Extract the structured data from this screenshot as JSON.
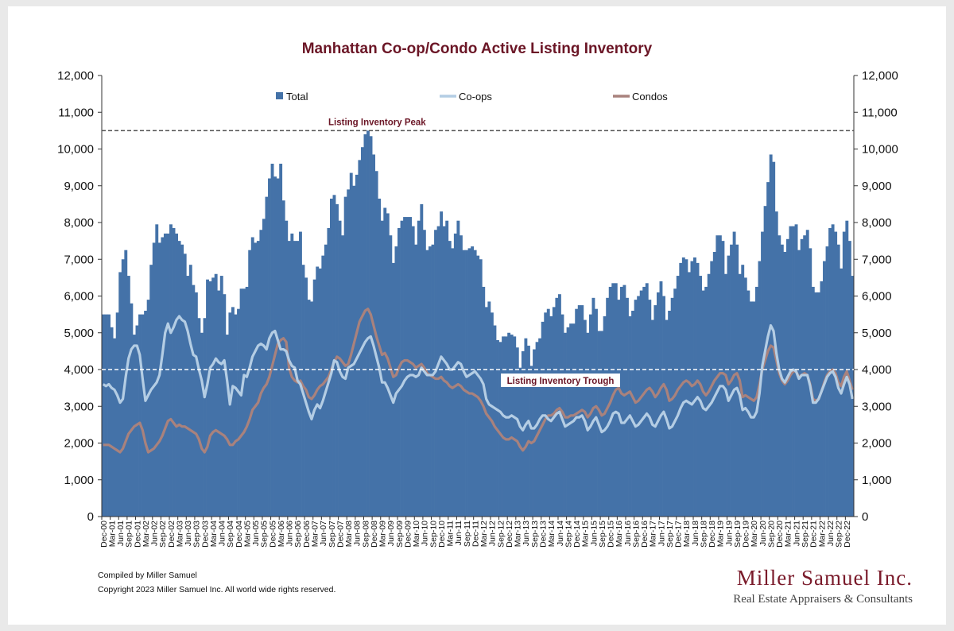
{
  "footer": {
    "compiled": "Compiled by Miller Samuel",
    "copyright": "Copyright 2023 Miller Samuel Inc.  All world wide rights reserved."
  },
  "logo": {
    "name": "Miller Samuel Inc.",
    "tagline": "Real Estate Appraisers & Consultants"
  },
  "chart_data": {
    "type": "bar",
    "title": "Manhattan Co-op/Condo Active Listing Inventory",
    "ylim": [
      0,
      12000
    ],
    "yticks": [
      0,
      1000,
      2000,
      3000,
      4000,
      5000,
      6000,
      7000,
      8000,
      9000,
      10000,
      11000,
      12000
    ],
    "dual_axis": true,
    "grid": false,
    "legend": {
      "position": "top",
      "entries": [
        "Total",
        "Co-ops",
        "Condos"
      ]
    },
    "x_tick_labels": [
      "Dec-00",
      "Mar-01",
      "Jun-01",
      "Sep-01",
      "Dec-01",
      "Mar-02",
      "Jun-02",
      "Sep-02",
      "Dec-02",
      "Mar-03",
      "Jun-03",
      "Sep-03",
      "Dec-03",
      "Mar-04",
      "Jun-04",
      "Sep-04",
      "Dec-04",
      "Mar-05",
      "Jun-05",
      "Sep-05",
      "Dec-05",
      "Mar-06",
      "Jun-06",
      "Sep-06",
      "Dec-06",
      "Mar-07",
      "Jun-07",
      "Sep-07",
      "Dec-07",
      "Mar-08",
      "Jun-08",
      "Sep-08",
      "Dec-08",
      "Mar-09",
      "Jun-09",
      "Sep-09",
      "Dec-09",
      "Mar-10",
      "Jun-10",
      "Sep-10",
      "Dec-10",
      "Mar-11",
      "Jun-11",
      "Sep-11",
      "Dec-11",
      "Mar-12",
      "Jun-12",
      "Sep-12",
      "Dec-12",
      "Mar-13",
      "Jun-13",
      "Sep-13",
      "Dec-13",
      "Mar-14",
      "Jun-14",
      "Sep-14",
      "Dec-14",
      "Mar-15",
      "Jun-15",
      "Sep-15",
      "Dec-15",
      "Mar-16",
      "Jun-16",
      "Sep-16",
      "Dec-16",
      "Mar-17",
      "Jun-17",
      "Sep-17",
      "Dec-17",
      "Mar-18",
      "Jun-18",
      "Sep-18",
      "Dec-18",
      "Mar-19",
      "Jun-19",
      "Sep-19",
      "Dec-19",
      "Mar-20",
      "Jun-20",
      "Sep-20",
      "Dec-20",
      "Mar-21",
      "Jun-21",
      "Sep-21",
      "Dec-21",
      "Mar-22",
      "Jun-22",
      "Sep-22",
      "Dec-22"
    ],
    "series": [
      {
        "name": "Total",
        "type": "bar",
        "color": "#4472a8",
        "values": [
          5500,
          5500,
          5500,
          5150,
          4850,
          5550,
          6650,
          7000,
          7250,
          6550,
          5800,
          4950,
          5200,
          5500,
          5500,
          5600,
          5900,
          6850,
          7450,
          7950,
          7450,
          7600,
          7700,
          7700,
          7950,
          7850,
          7700,
          7500,
          7400,
          7150,
          6550,
          6850,
          6300,
          6100,
          5400,
          5000,
          5400,
          6450,
          6400,
          6500,
          6600,
          6150,
          6550,
          6050,
          4950,
          5550,
          5700,
          5500,
          5650,
          6200,
          6200,
          6250,
          7250,
          7600,
          7450,
          7500,
          7800,
          8100,
          8700,
          9200,
          9600,
          9250,
          9200,
          9600,
          8600,
          8050,
          7500,
          7700,
          7500,
          7500,
          7750,
          6850,
          6500,
          5900,
          5850,
          6450,
          6800,
          6750,
          7100,
          7400,
          7850,
          8650,
          8750,
          8500,
          8050,
          7650,
          8700,
          8900,
          9350,
          9000,
          9300,
          9700,
          10050,
          10400,
          10500,
          10350,
          9850,
          9400,
          8650,
          8050,
          8400,
          8250,
          7650,
          6900,
          7350,
          7850,
          8050,
          8150,
          8150,
          8150,
          7900,
          7400,
          8050,
          8500,
          7800,
          7250,
          7350,
          7400,
          7800,
          7900,
          8300,
          7900,
          8050,
          7500,
          7300,
          7700,
          8050,
          7650,
          7250,
          7250,
          7300,
          7350,
          7250,
          7100,
          7000,
          6250,
          5700,
          5850,
          5550,
          5200,
          4800,
          4750,
          4900,
          4900,
          5000,
          4950,
          4900,
          4600,
          4050,
          4500,
          4850,
          4650,
          4100,
          4550,
          4750,
          4850,
          5300,
          5550,
          5650,
          5450,
          5700,
          5950,
          6050,
          5500,
          5000,
          5150,
          5250,
          5250,
          5650,
          5750,
          5750,
          5350,
          5000,
          5500,
          5950,
          5650,
          5050,
          5050,
          5450,
          5950,
          6250,
          6350,
          6350,
          5900,
          6250,
          6300,
          5950,
          5450,
          5600,
          5900,
          6000,
          6150,
          6250,
          6350,
          5900,
          5350,
          5750,
          6100,
          6400,
          6000,
          5350,
          5600,
          5950,
          6200,
          6550,
          6900,
          7050,
          7000,
          6650,
          6950,
          7050,
          6900,
          6550,
          6150,
          6250,
          6600,
          6950,
          7200,
          7650,
          7650,
          7500,
          6600,
          7100,
          7400,
          7750,
          7400,
          6600,
          6850,
          6500,
          6150,
          5850,
          5850,
          6250,
          6950,
          7750,
          8450,
          9100,
          9850,
          9650,
          8300,
          7650,
          7400,
          7200,
          7550,
          7900,
          7900,
          7950,
          7250,
          7550,
          7650,
          7800,
          7300,
          6250,
          6100,
          6100,
          6400,
          6950,
          7350,
          7850,
          7950,
          7750,
          7400,
          6750,
          7750,
          8050,
          7500,
          6550
        ]
      },
      {
        "name": "Co-ops",
        "type": "line",
        "color": "#b4cde4",
        "values": [
          3600,
          3550,
          3600,
          3500,
          3450,
          3300,
          3100,
          3200,
          3800,
          4300,
          4550,
          4650,
          4650,
          4400,
          3750,
          3150,
          3300,
          3450,
          3550,
          3650,
          3850,
          4400,
          5000,
          5250,
          5000,
          5150,
          5350,
          5450,
          5350,
          5300,
          5050,
          4700,
          4400,
          4350,
          4000,
          3700,
          3250,
          3600,
          4050,
          4150,
          4300,
          4200,
          4150,
          4250,
          3700,
          3050,
          3550,
          3500,
          3400,
          3300,
          3850,
          3800,
          4050,
          4350,
          4500,
          4650,
          4700,
          4650,
          4550,
          4850,
          5000,
          5050,
          4800,
          4550,
          4550,
          4500,
          4250,
          4100,
          4050,
          3700,
          3600,
          3350,
          3100,
          2850,
          2650,
          2900,
          3050,
          2950,
          3150,
          3400,
          3650,
          3900,
          4250,
          4200,
          3950,
          3800,
          3750,
          4050,
          4100,
          4150,
          4300,
          4450,
          4600,
          4750,
          4850,
          4900,
          4650,
          4350,
          4050,
          3650,
          3650,
          3500,
          3300,
          3100,
          3350,
          3450,
          3550,
          3700,
          3800,
          3850,
          3850,
          3800,
          3850,
          4050,
          3950,
          3850,
          3850,
          3850,
          3950,
          4150,
          4350,
          4250,
          4150,
          4000,
          4000,
          4100,
          4200,
          4150,
          3950,
          3800,
          3850,
          3900,
          3950,
          3850,
          3750,
          3600,
          3200,
          3050,
          3000,
          2950,
          2900,
          2850,
          2750,
          2700,
          2700,
          2750,
          2700,
          2650,
          2450,
          2350,
          2500,
          2600,
          2400,
          2400,
          2500,
          2650,
          2750,
          2750,
          2650,
          2600,
          2700,
          2800,
          2850,
          2650,
          2450,
          2500,
          2550,
          2600,
          2700,
          2700,
          2750,
          2600,
          2350,
          2450,
          2600,
          2700,
          2500,
          2300,
          2350,
          2450,
          2600,
          2800,
          2850,
          2800,
          2550,
          2550,
          2650,
          2750,
          2600,
          2450,
          2500,
          2600,
          2700,
          2800,
          2700,
          2500,
          2450,
          2600,
          2750,
          2850,
          2650,
          2400,
          2450,
          2600,
          2750,
          2950,
          3100,
          3150,
          3100,
          3050,
          3150,
          3250,
          3150,
          2950,
          2900,
          3000,
          3100,
          3250,
          3400,
          3550,
          3550,
          3450,
          3150,
          3300,
          3450,
          3500,
          3300,
          2900,
          2950,
          2850,
          2700,
          2700,
          2850,
          3350,
          4100,
          4500,
          4900,
          5200,
          5050,
          4450,
          4000,
          3750,
          3650,
          3800,
          3950,
          4000,
          3950,
          3750,
          3850,
          3850,
          3850,
          3550,
          3100,
          3100,
          3200,
          3400,
          3600,
          3800,
          3900,
          3950,
          3800,
          3500,
          3350,
          3600,
          3800,
          3600,
          3200
        ]
      },
      {
        "name": "Condos",
        "type": "line",
        "color": "#a9827d",
        "values": [
          1950,
          1950,
          1950,
          1900,
          1850,
          1800,
          1750,
          1850,
          2050,
          2250,
          2350,
          2450,
          2500,
          2550,
          2350,
          2000,
          1750,
          1800,
          1850,
          1950,
          2050,
          2200,
          2400,
          2600,
          2650,
          2550,
          2450,
          2500,
          2450,
          2450,
          2400,
          2350,
          2300,
          2250,
          2100,
          1850,
          1750,
          1900,
          2200,
          2300,
          2350,
          2300,
          2250,
          2200,
          2100,
          1950,
          1950,
          2050,
          2100,
          2200,
          2300,
          2450,
          2650,
          2900,
          3000,
          3100,
          3350,
          3500,
          3600,
          3800,
          4100,
          4400,
          4700,
          4800,
          4850,
          4750,
          4050,
          3800,
          3700,
          3650,
          3700,
          3550,
          3450,
          3250,
          3200,
          3300,
          3450,
          3550,
          3600,
          3700,
          3800,
          4000,
          4200,
          4350,
          4300,
          4200,
          4100,
          4150,
          4400,
          4700,
          5000,
          5300,
          5450,
          5600,
          5650,
          5500,
          5200,
          4900,
          4650,
          4400,
          4450,
          4300,
          4050,
          3800,
          3850,
          4050,
          4200,
          4250,
          4250,
          4200,
          4150,
          4050,
          4100,
          4150,
          4050,
          3900,
          3850,
          3800,
          3750,
          3750,
          3800,
          3700,
          3650,
          3550,
          3500,
          3550,
          3600,
          3550,
          3450,
          3400,
          3350,
          3350,
          3300,
          3250,
          3150,
          3000,
          2800,
          2700,
          2600,
          2450,
          2350,
          2250,
          2150,
          2100,
          2100,
          2150,
          2100,
          2050,
          1900,
          1800,
          1900,
          2050,
          2000,
          2050,
          2200,
          2350,
          2500,
          2650,
          2750,
          2750,
          2800,
          2900,
          2950,
          2850,
          2700,
          2700,
          2750,
          2750,
          2800,
          2850,
          2900,
          2850,
          2700,
          2800,
          2950,
          3000,
          2900,
          2750,
          2800,
          2950,
          3100,
          3300,
          3450,
          3500,
          3350,
          3300,
          3350,
          3400,
          3250,
          3100,
          3150,
          3250,
          3350,
          3450,
          3500,
          3400,
          3250,
          3350,
          3500,
          3600,
          3450,
          3150,
          3200,
          3300,
          3450,
          3550,
          3650,
          3700,
          3650,
          3550,
          3600,
          3700,
          3600,
          3400,
          3300,
          3400,
          3550,
          3700,
          3800,
          3900,
          3900,
          3850,
          3600,
          3700,
          3850,
          3900,
          3700,
          3250,
          3300,
          3250,
          3200,
          3150,
          3250,
          3600,
          4000,
          4250,
          4500,
          4650,
          4600,
          4250,
          3900,
          3700,
          3600,
          3700,
          3850,
          3950,
          3950,
          3800,
          3850,
          3900,
          3850,
          3600,
          3200,
          3150,
          3200,
          3400,
          3650,
          3850,
          3950,
          4000,
          3900,
          3650,
          3550,
          3800,
          3950,
          3700,
          3450
        ]
      }
    ],
    "annotations": [
      {
        "label": "Listing Inventory Peak",
        "value": 10500
      },
      {
        "label": "Listing Inventory Trough",
        "value": 4000
      }
    ]
  }
}
